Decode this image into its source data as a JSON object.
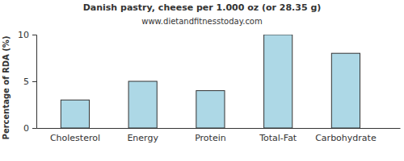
{
  "chart_data": {
    "type": "bar",
    "title": "Danish pastry, cheese per 1.000 oz (or 28.35 g)",
    "subtitle": "www.dietandfitnesstoday.com",
    "y_label": "Percentage of RDA (%)",
    "categories": [
      "Cholesterol",
      "Energy",
      "Protein",
      "Total-Fat",
      "Carbohydrate"
    ],
    "values": [
      3,
      5,
      4,
      10,
      8
    ],
    "color": "#add8e6",
    "ylim": [
      0,
      10
    ],
    "yticks": [
      0,
      5,
      10
    ],
    "grid": false
  }
}
